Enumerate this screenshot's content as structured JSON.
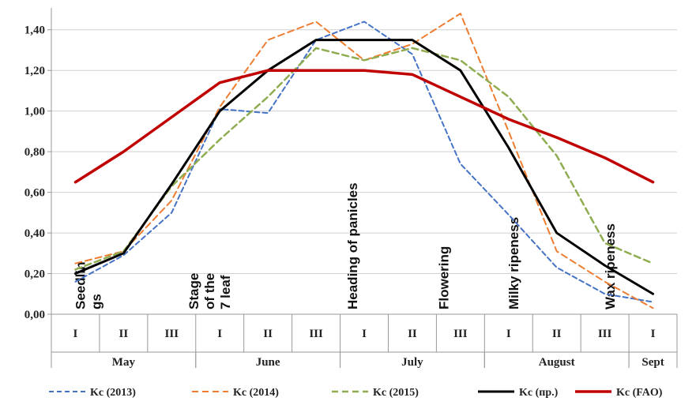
{
  "chart_data": {
    "type": "line",
    "ylim": [
      0,
      1.5
    ],
    "yticks": [
      "0,00",
      "0,20",
      "0,40",
      "0,60",
      "0,80",
      "1,00",
      "1,20",
      "1,40"
    ],
    "decades": [
      "I",
      "II",
      "III",
      "I",
      "II",
      "III",
      "I",
      "II",
      "III",
      "I",
      "II",
      "III",
      "I"
    ],
    "months": [
      {
        "label": "May",
        "span": [
          0,
          3
        ]
      },
      {
        "label": "June",
        "span": [
          3,
          6
        ]
      },
      {
        "label": "July",
        "span": [
          6,
          9
        ]
      },
      {
        "label": "August",
        "span": [
          9,
          12
        ]
      },
      {
        "label": "Sept",
        "span": [
          12,
          13
        ]
      }
    ],
    "stages": [
      {
        "lines": [
          "Seedlin",
          "gs"
        ],
        "x": 0.2
      },
      {
        "lines": [
          "Stage",
          "of the",
          "7 leaf"
        ],
        "x": 2.55
      },
      {
        "lines": [
          "Heading of panicles"
        ],
        "x": 5.85
      },
      {
        "lines": [
          "Flowering"
        ],
        "x": 7.75
      },
      {
        "lines": [
          "Milky ripeness"
        ],
        "x": 9.2
      },
      {
        "lines": [
          "Wax ripeness"
        ],
        "x": 11.2
      }
    ],
    "series": [
      {
        "name": "Kc (2013)",
        "color": "#4472c4",
        "dash": "6,4",
        "width": 2,
        "values": [
          0.16,
          0.29,
          0.5,
          1.01,
          0.99,
          1.35,
          1.44,
          1.28,
          0.74,
          0.49,
          0.23,
          0.1,
          0.06
        ]
      },
      {
        "name": "Kc (2014)",
        "color": "#ed7d31",
        "dash": "8,5",
        "width": 2,
        "values": [
          0.25,
          0.31,
          0.56,
          1.02,
          1.35,
          1.44,
          1.25,
          1.33,
          1.48,
          0.9,
          0.31,
          0.16,
          0.03
        ]
      },
      {
        "name": "Kc (2015)",
        "color": "#8fad50",
        "dash": "8,5",
        "width": 2.5,
        "values": [
          0.22,
          0.31,
          0.63,
          0.86,
          1.07,
          1.31,
          1.25,
          1.31,
          1.25,
          1.07,
          0.78,
          0.35,
          0.25
        ]
      },
      {
        "name": "Kc (пр.)",
        "color": "#000000",
        "dash": "",
        "width": 3,
        "values": [
          0.2,
          0.3,
          0.64,
          1.0,
          1.2,
          1.35,
          1.35,
          1.35,
          1.2,
          0.82,
          0.4,
          0.24,
          0.1
        ]
      },
      {
        "name": "Kc (FAO)",
        "color": "#c00000",
        "dash": "",
        "width": 3.5,
        "values": [
          0.65,
          0.8,
          0.97,
          1.14,
          1.2,
          1.2,
          1.2,
          1.18,
          1.07,
          0.96,
          0.87,
          0.77,
          0.65
        ]
      }
    ]
  }
}
